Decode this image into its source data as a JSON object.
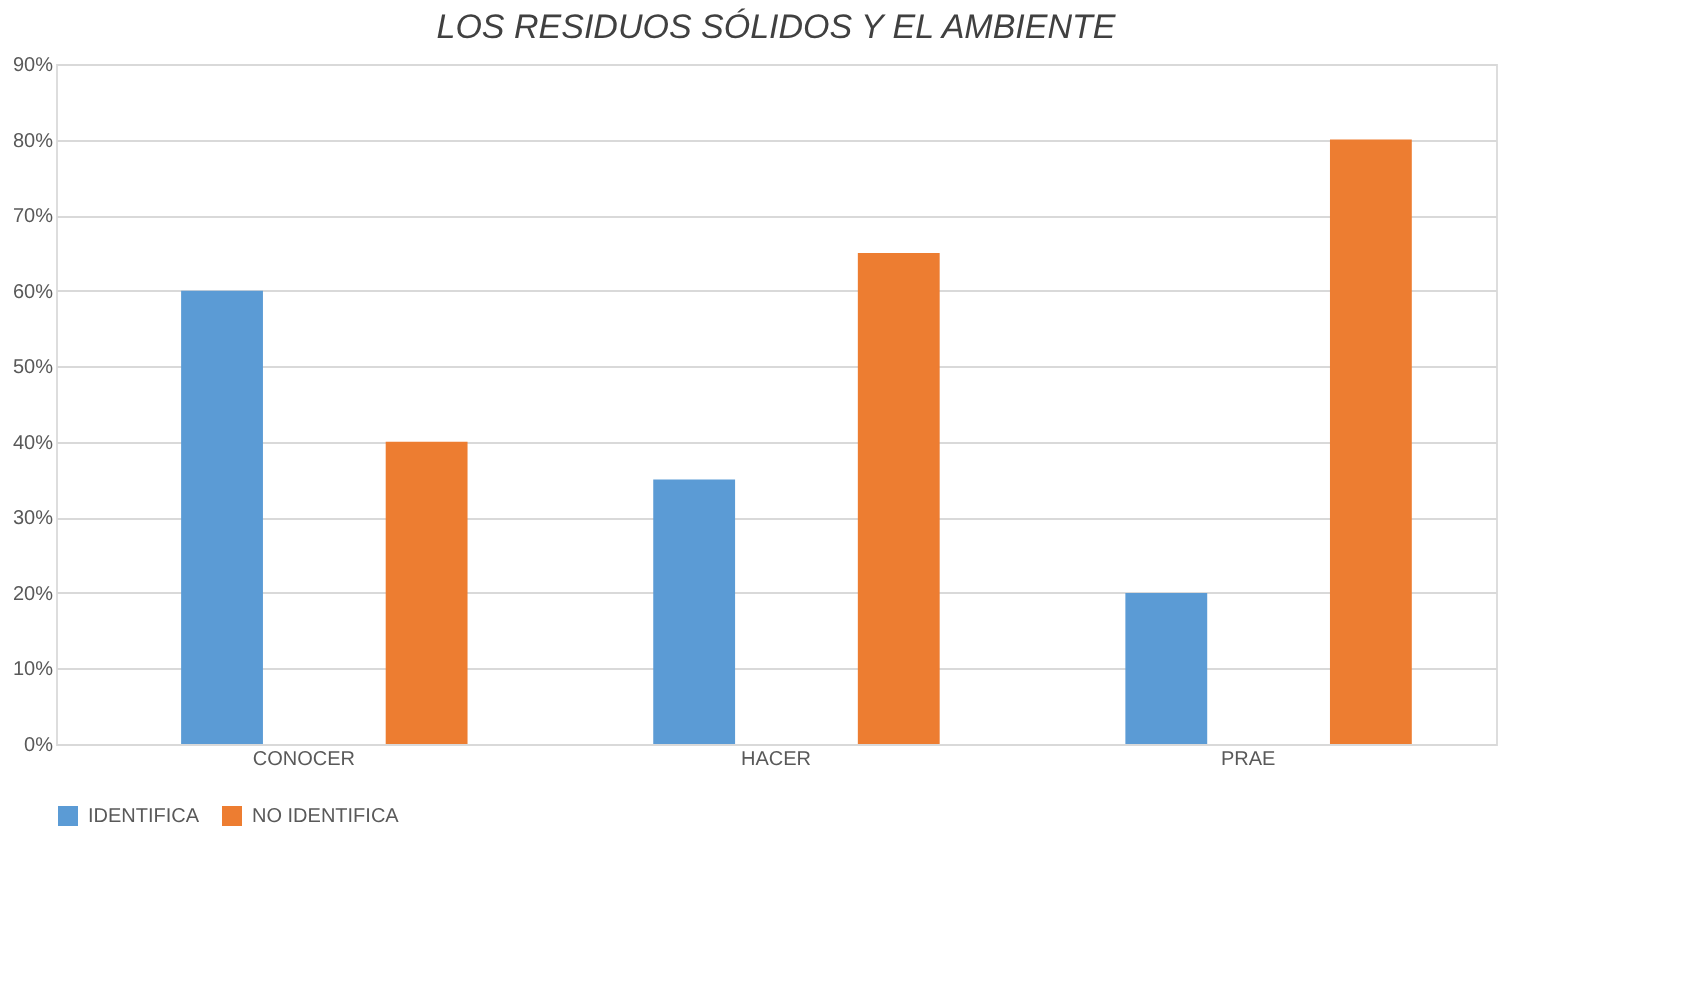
{
  "chart_data": {
    "type": "bar",
    "title": "LOS RESIDUOS SÓLIDOS Y EL AMBIENTE",
    "categories": [
      "CONOCER",
      "HACER",
      "PRAE"
    ],
    "series": [
      {
        "name": "IDENTIFICA",
        "color": "#5b9bd5",
        "values": [
          60,
          35,
          20
        ]
      },
      {
        "name": "NO IDENTIFICA",
        "color": "#ed7d31",
        "values": [
          40,
          65,
          80
        ]
      }
    ],
    "ylim": [
      0,
      90
    ],
    "yticks": [
      {
        "value": 0,
        "label": "0%"
      },
      {
        "value": 10,
        "label": "10%"
      },
      {
        "value": 20,
        "label": "20%"
      },
      {
        "value": 30,
        "label": "30%"
      },
      {
        "value": 40,
        "label": "40%"
      },
      {
        "value": 50,
        "label": "50%"
      },
      {
        "value": 60,
        "label": "60%"
      },
      {
        "value": 70,
        "label": "70%"
      },
      {
        "value": 80,
        "label": "80%"
      },
      {
        "value": 90,
        "label": "90%"
      }
    ],
    "grid": "y",
    "legend": "bottom"
  }
}
